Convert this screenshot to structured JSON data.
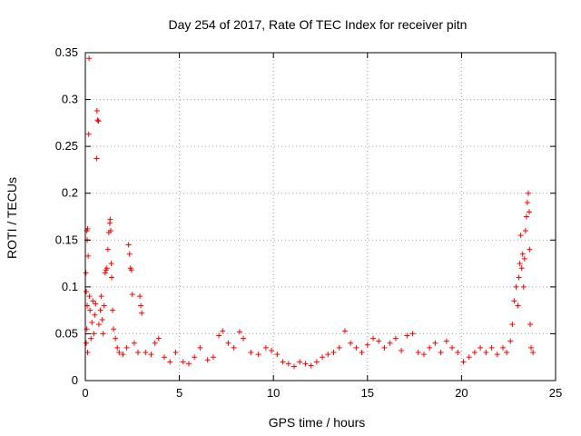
{
  "chart_data": {
    "type": "scatter",
    "title": "Day 254 of 2017, Rate Of TEC Index for receiver pitn",
    "xlabel": "GPS time / hours",
    "ylabel": "ROTI / TECUs",
    "xlim": [
      0,
      25
    ],
    "ylim": [
      0,
      0.35
    ],
    "x_ticks": [
      0,
      5,
      10,
      15,
      20,
      25
    ],
    "y_ticks": [
      0,
      0.05,
      0.1,
      0.15,
      0.2,
      0.25,
      0.3,
      0.35
    ],
    "x_tick_labels": [
      "0",
      "5",
      "10",
      "15",
      "20",
      "25"
    ],
    "y_tick_labels": [
      "0",
      "0.05",
      "0.1",
      "0.15",
      "0.2",
      "0.25",
      "0.3",
      "0.35"
    ],
    "grid": true,
    "marker": "plus",
    "marker_color": "#ff0000",
    "series": [
      {
        "name": "ROTI",
        "points": [
          [
            0.03,
            0.115
          ],
          [
            0.05,
            0.095
          ],
          [
            0.08,
            0.16
          ],
          [
            0.1,
            0.15
          ],
          [
            0.12,
            0.162
          ],
          [
            0.15,
            0.133
          ],
          [
            0.1,
            0.08
          ],
          [
            0.08,
            0.055
          ],
          [
            0.05,
            0.04
          ],
          [
            0.12,
            0.03
          ],
          [
            0.18,
            0.263
          ],
          [
            0.2,
            0.344
          ],
          [
            0.22,
            0.09
          ],
          [
            0.25,
            0.075
          ],
          [
            0.3,
            0.045
          ],
          [
            0.35,
            0.062
          ],
          [
            0.4,
            0.085
          ],
          [
            0.45,
            0.05
          ],
          [
            0.5,
            0.07
          ],
          [
            0.55,
            0.082
          ],
          [
            0.6,
            0.237
          ],
          [
            0.62,
            0.288
          ],
          [
            0.65,
            0.278
          ],
          [
            0.7,
            0.277
          ],
          [
            0.72,
            0.06
          ],
          [
            0.8,
            0.075
          ],
          [
            0.85,
            0.09
          ],
          [
            0.9,
            0.065
          ],
          [
            0.95,
            0.05
          ],
          [
            1.0,
            0.08
          ],
          [
            1.05,
            0.115
          ],
          [
            1.1,
            0.118
          ],
          [
            1.15,
            0.12
          ],
          [
            1.2,
            0.14
          ],
          [
            1.25,
            0.158
          ],
          [
            1.3,
            0.168
          ],
          [
            1.32,
            0.172
          ],
          [
            1.35,
            0.16
          ],
          [
            1.38,
            0.125
          ],
          [
            1.4,
            0.11
          ],
          [
            1.45,
            0.075
          ],
          [
            1.5,
            0.055
          ],
          [
            1.6,
            0.045
          ],
          [
            1.7,
            0.035
          ],
          [
            1.8,
            0.03
          ],
          [
            2.0,
            0.028
          ],
          [
            2.2,
            0.035
          ],
          [
            2.3,
            0.145
          ],
          [
            2.35,
            0.135
          ],
          [
            2.4,
            0.12
          ],
          [
            2.45,
            0.118
          ],
          [
            2.5,
            0.092
          ],
          [
            2.6,
            0.04
          ],
          [
            2.8,
            0.03
          ],
          [
            2.9,
            0.09
          ],
          [
            2.95,
            0.08
          ],
          [
            3.0,
            0.072
          ],
          [
            3.2,
            0.03
          ],
          [
            3.5,
            0.028
          ],
          [
            3.7,
            0.04
          ],
          [
            3.9,
            0.045
          ],
          [
            4.2,
            0.025
          ],
          [
            4.5,
            0.02
          ],
          [
            4.8,
            0.03
          ],
          [
            5.2,
            0.02
          ],
          [
            5.5,
            0.018
          ],
          [
            5.8,
            0.025
          ],
          [
            6.1,
            0.035
          ],
          [
            6.5,
            0.022
          ],
          [
            6.8,
            0.025
          ],
          [
            7.1,
            0.048
          ],
          [
            7.3,
            0.053
          ],
          [
            7.6,
            0.04
          ],
          [
            7.9,
            0.035
          ],
          [
            8.2,
            0.052
          ],
          [
            8.4,
            0.045
          ],
          [
            8.8,
            0.03
          ],
          [
            9.2,
            0.028
          ],
          [
            9.6,
            0.035
          ],
          [
            9.9,
            0.032
          ],
          [
            10.2,
            0.028
          ],
          [
            10.5,
            0.02
          ],
          [
            10.8,
            0.018
          ],
          [
            11.1,
            0.015
          ],
          [
            11.4,
            0.02
          ],
          [
            11.7,
            0.018
          ],
          [
            12.0,
            0.016
          ],
          [
            12.3,
            0.02
          ],
          [
            12.6,
            0.025
          ],
          [
            12.9,
            0.028
          ],
          [
            13.2,
            0.03
          ],
          [
            13.5,
            0.035
          ],
          [
            13.8,
            0.053
          ],
          [
            14.1,
            0.04
          ],
          [
            14.4,
            0.035
          ],
          [
            14.7,
            0.03
          ],
          [
            15.0,
            0.038
          ],
          [
            15.3,
            0.045
          ],
          [
            15.6,
            0.042
          ],
          [
            15.9,
            0.035
          ],
          [
            16.2,
            0.04
          ],
          [
            16.5,
            0.045
          ],
          [
            16.8,
            0.032
          ],
          [
            17.1,
            0.048
          ],
          [
            17.4,
            0.05
          ],
          [
            17.7,
            0.03
          ],
          [
            18.0,
            0.028
          ],
          [
            18.3,
            0.035
          ],
          [
            18.6,
            0.04
          ],
          [
            18.9,
            0.03
          ],
          [
            19.2,
            0.042
          ],
          [
            19.5,
            0.035
          ],
          [
            19.8,
            0.03
          ],
          [
            20.1,
            0.02
          ],
          [
            20.4,
            0.025
          ],
          [
            20.7,
            0.03
          ],
          [
            21.0,
            0.035
          ],
          [
            21.3,
            0.03
          ],
          [
            21.6,
            0.035
          ],
          [
            21.9,
            0.028
          ],
          [
            22.2,
            0.035
          ],
          [
            22.4,
            0.03
          ],
          [
            22.6,
            0.042
          ],
          [
            22.7,
            0.06
          ],
          [
            22.8,
            0.085
          ],
          [
            22.9,
            0.1
          ],
          [
            23.0,
            0.08
          ],
          [
            23.05,
            0.11
          ],
          [
            23.1,
            0.125
          ],
          [
            23.15,
            0.155
          ],
          [
            23.2,
            0.12
          ],
          [
            23.25,
            0.135
          ],
          [
            23.3,
            0.1
          ],
          [
            23.35,
            0.13
          ],
          [
            23.4,
            0.16
          ],
          [
            23.45,
            0.175
          ],
          [
            23.5,
            0.19
          ],
          [
            23.55,
            0.2
          ],
          [
            23.6,
            0.18
          ],
          [
            23.62,
            0.14
          ],
          [
            23.65,
            0.06
          ],
          [
            23.7,
            0.035
          ],
          [
            23.8,
            0.03
          ]
        ]
      }
    ]
  }
}
